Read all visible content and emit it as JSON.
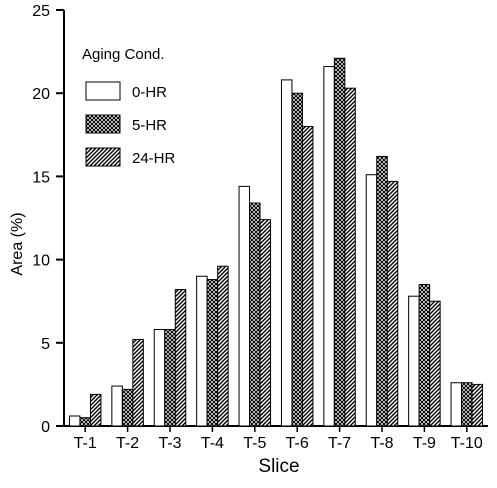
{
  "chart_data": {
    "type": "bar",
    "title": "",
    "xlabel": "Slice",
    "ylabel": "Area (%)",
    "ylim": [
      0,
      25
    ],
    "yticks": [
      0,
      5,
      10,
      15,
      20,
      25
    ],
    "grid": false,
    "legend_position": "top-left",
    "legend_title": "Aging Cond.",
    "categories": [
      "T-1",
      "T-2",
      "T-3",
      "T-4",
      "T-5",
      "T-6",
      "T-7",
      "T-8",
      "T-9",
      "T-10"
    ],
    "series": [
      {
        "name": "0-HR",
        "pattern": "plain",
        "values": [
          0.6,
          2.4,
          5.8,
          9.0,
          14.4,
          20.8,
          21.6,
          15.1,
          7.8,
          2.6
        ]
      },
      {
        "name": "5-HR",
        "pattern": "crosshatch",
        "values": [
          0.5,
          2.2,
          5.8,
          8.8,
          13.4,
          20.0,
          22.1,
          16.2,
          8.5,
          2.6
        ]
      },
      {
        "name": "24-HR",
        "pattern": "diagonal",
        "values": [
          1.9,
          5.2,
          8.2,
          9.6,
          12.4,
          18.0,
          20.3,
          14.7,
          7.5,
          2.5
        ]
      }
    ]
  },
  "colors": {
    "ink": "#000000",
    "background": "#ffffff"
  }
}
